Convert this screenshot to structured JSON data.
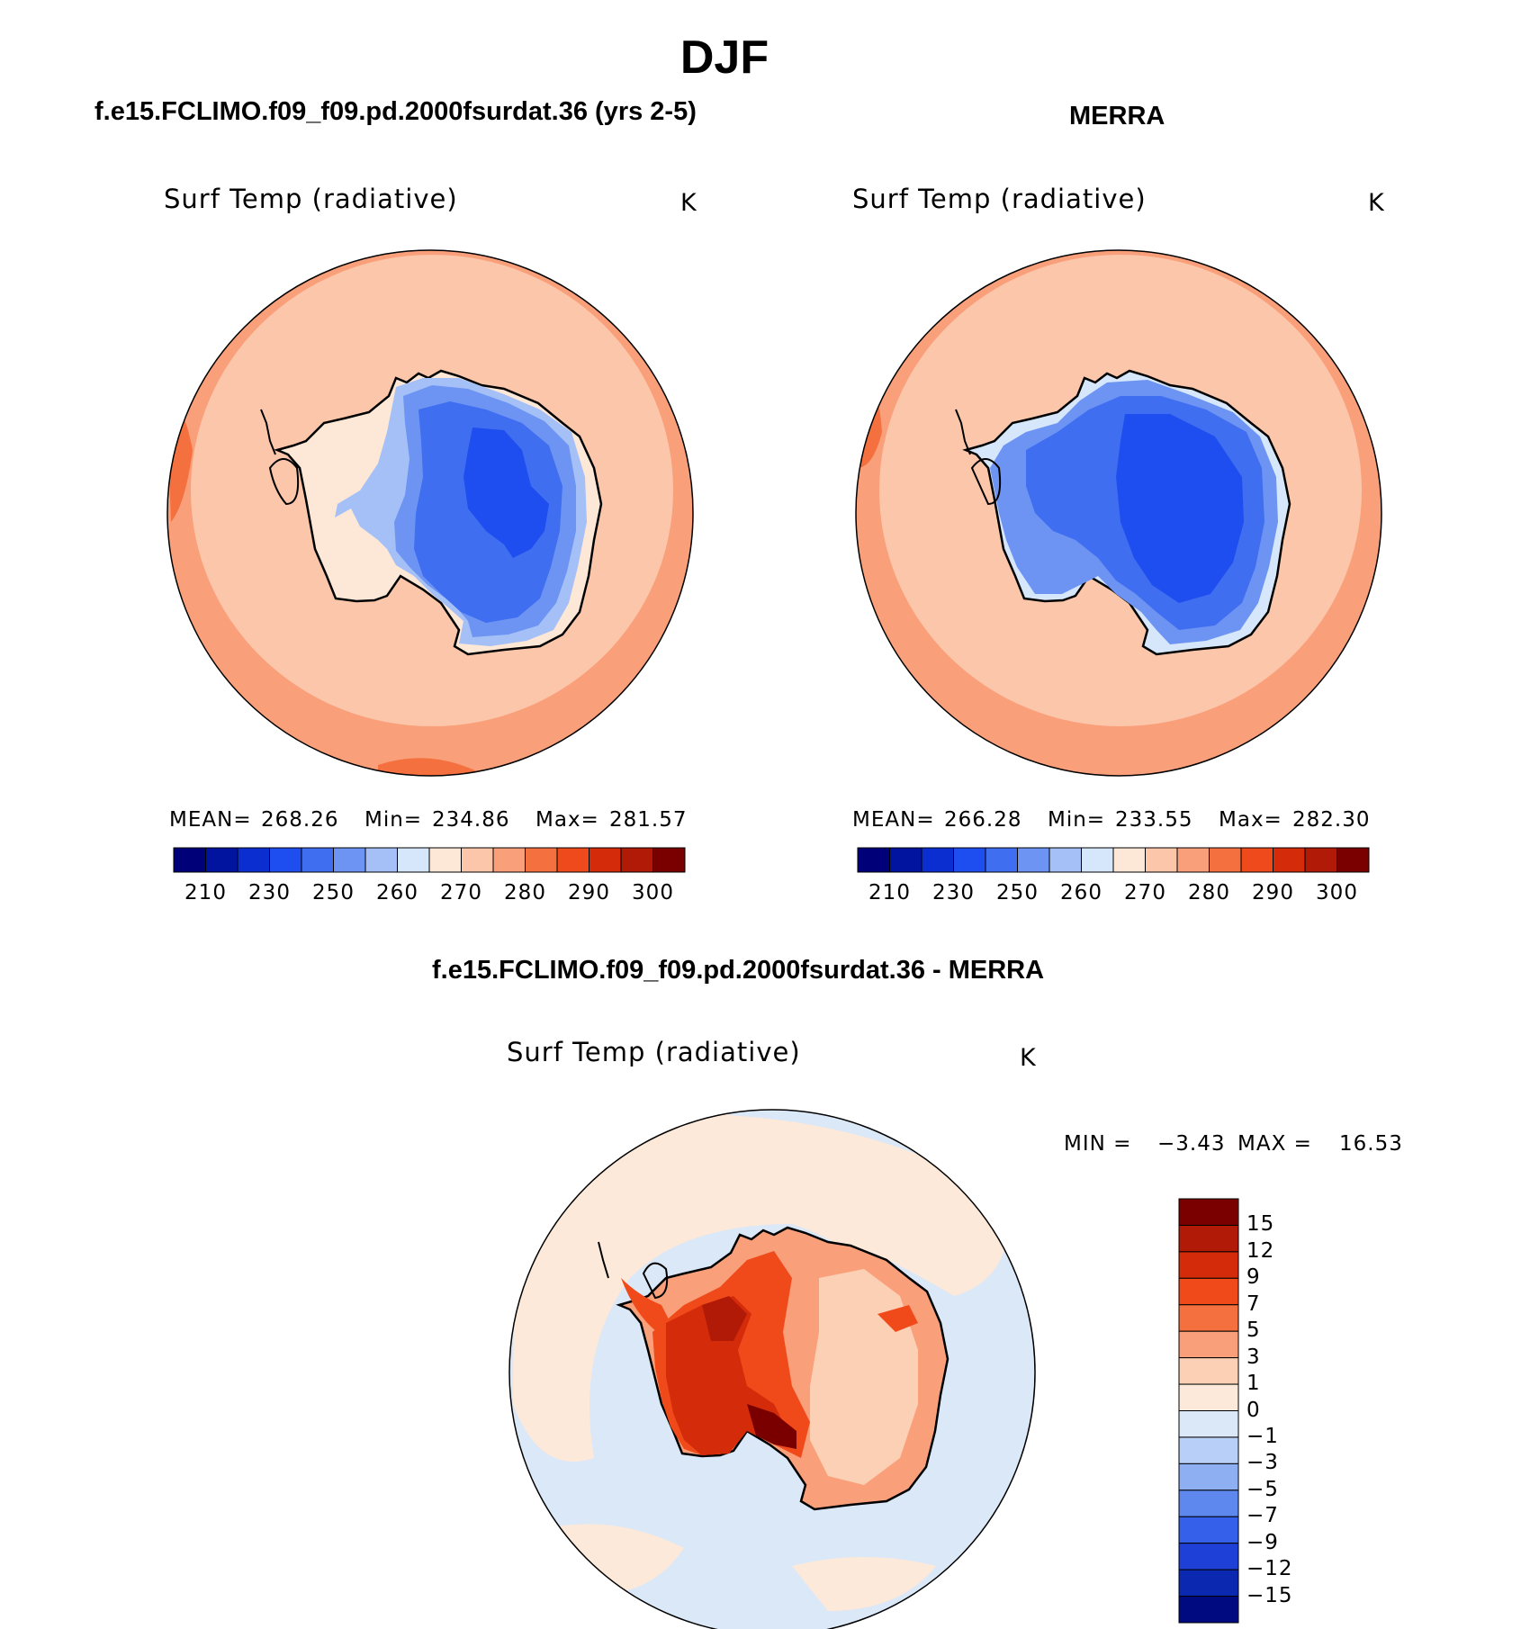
{
  "title": "DJF",
  "panels": [
    {
      "header": "f.e15.FCLIMO.f09_f09.pd.2000fsurdat.36 (yrs 2-5)",
      "variable": "Surf Temp (radiative)",
      "units": "K",
      "stats": {
        "mean_label": "MEAN=",
        "mean": "268.26",
        "min_label": "Min=",
        "min": "234.86",
        "max_label": "Max=",
        "max": "281.57"
      }
    },
    {
      "header": "MERRA",
      "variable": "Surf Temp (radiative)",
      "units": "K",
      "stats": {
        "mean_label": "MEAN=",
        "mean": "266.28",
        "min_label": "Min=",
        "min": "233.55",
        "max_label": "Max=",
        "max": "282.30"
      }
    }
  ],
  "absolute_colorbar": {
    "colors": [
      "#000078",
      "#0014a0",
      "#0a2ecf",
      "#1f4ef0",
      "#3f6ef0",
      "#6d94f3",
      "#a4c0f7",
      "#d6e6fb",
      "#fde7d6",
      "#fcc6ab",
      "#f9a07a",
      "#f4703f",
      "#ef4a1c",
      "#d42c0a",
      "#b01a06",
      "#7a0000"
    ],
    "tick_labels": [
      "210",
      "230",
      "250",
      "260",
      "270",
      "280",
      "290",
      "300"
    ]
  },
  "difference": {
    "header": "f.e15.FCLIMO.f09_f09.pd.2000fsurdat.36 - MERRA",
    "variable": "Surf Temp (radiative)",
    "units": "K",
    "min_label": "MIN =",
    "min": "−3.43",
    "max_label": "MAX =",
    "max": "16.53",
    "colorbar_colors": [
      "#7a0000",
      "#b01a06",
      "#d42c0a",
      "#f04a1a",
      "#f4703f",
      "#f9a07a",
      "#fcd0b4",
      "#fde9d9",
      "#dbe8f8",
      "#b8cff7",
      "#8eb0f3",
      "#5f88ef",
      "#3560ea",
      "#1f40d6",
      "#0a28b0",
      "#000a80"
    ],
    "colorbar_labels": [
      "15",
      "12",
      "9",
      "7",
      "5",
      "3",
      "1",
      "0",
      "−1",
      "−3",
      "−5",
      "−7",
      "−9",
      "−12",
      "−15"
    ]
  }
}
